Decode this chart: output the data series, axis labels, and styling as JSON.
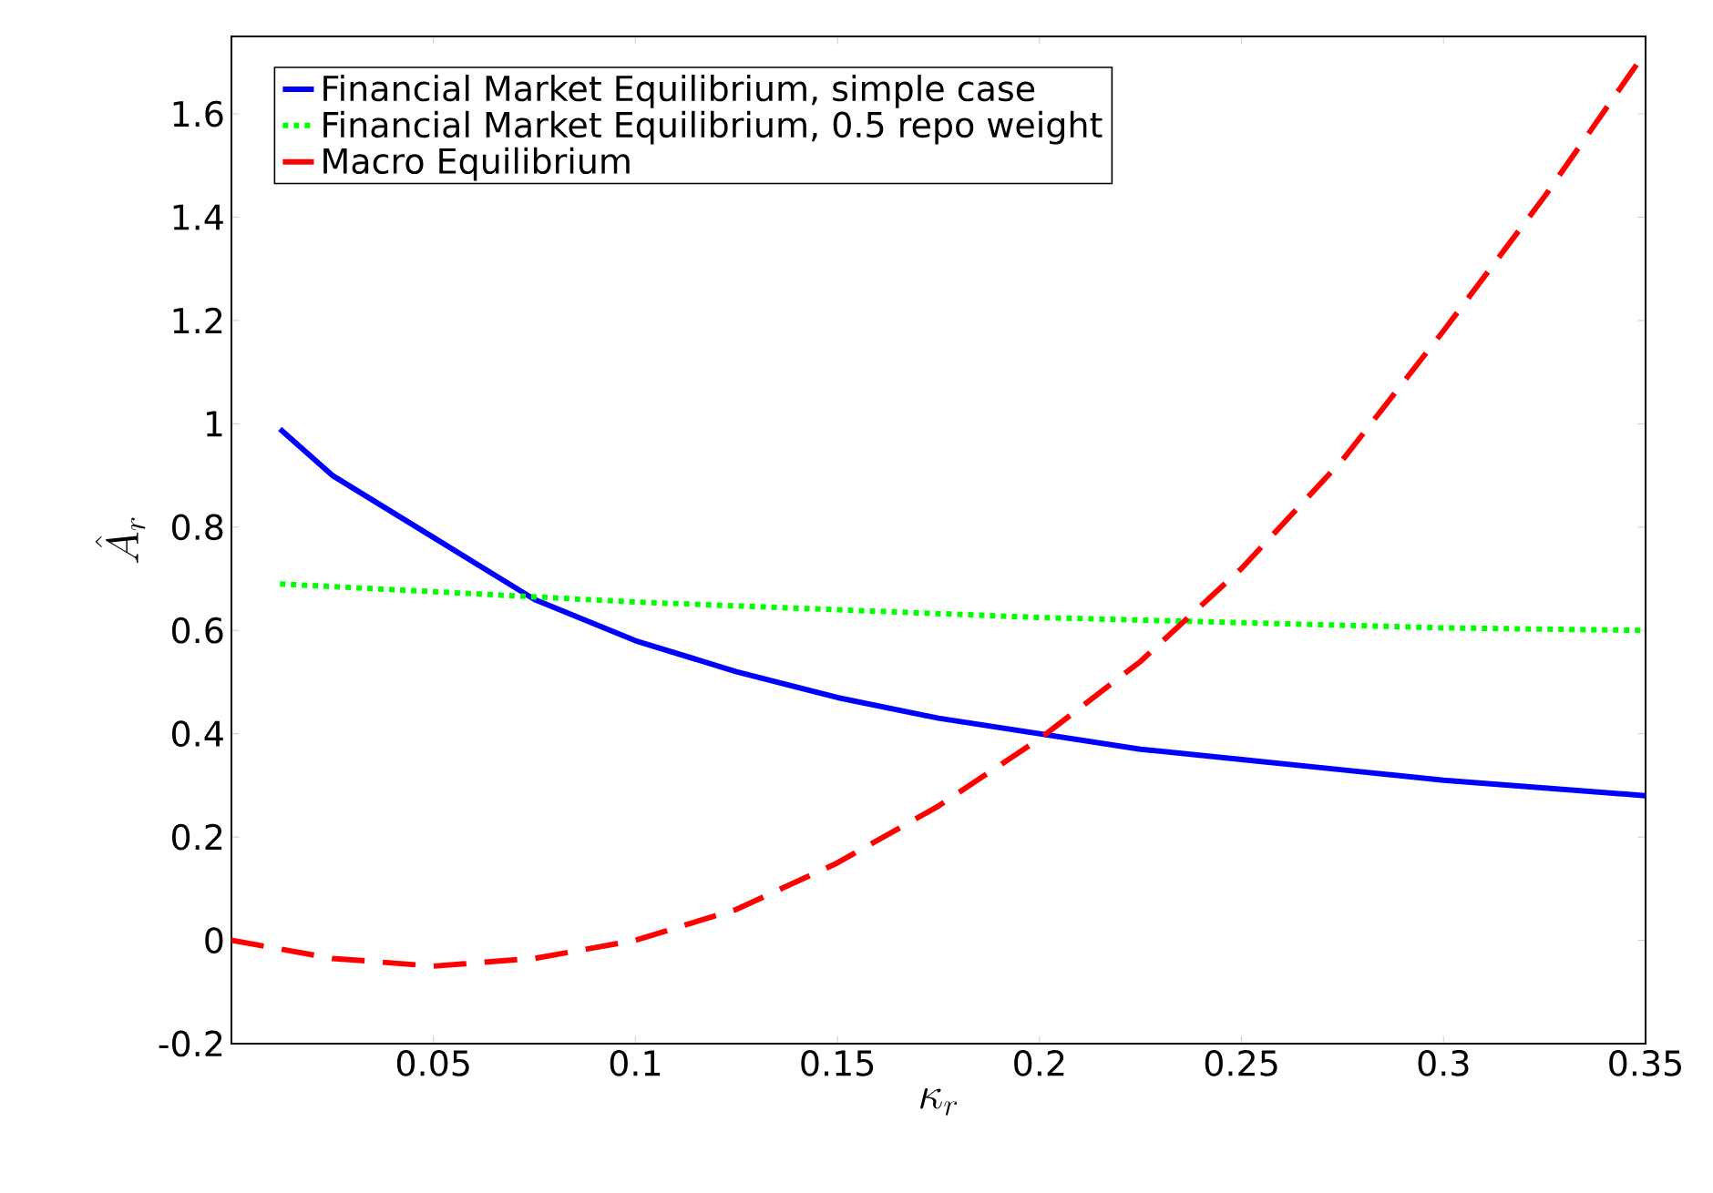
{
  "chart_data": {
    "type": "line",
    "xlabel": "\\kappa_r",
    "ylabel": "\\hat{A}_r",
    "xlim": [
      0,
      0.35
    ],
    "ylim": [
      -0.2,
      1.75
    ],
    "xticks": [
      0.05,
      0.1,
      0.15,
      0.2,
      0.25,
      0.3,
      0.35
    ],
    "yticks": [
      -0.2,
      0,
      0.2,
      0.4,
      0.6,
      0.8,
      1,
      1.2,
      1.4,
      1.6
    ],
    "legend": "top left",
    "grid": false,
    "marker": "none",
    "series": [
      {
        "name": "Financial Market Equilibrium, simple case",
        "color": "#0000ff",
        "line_style": "solid",
        "x": [
          0.012,
          0.025,
          0.05,
          0.075,
          0.1,
          0.125,
          0.15,
          0.175,
          0.2,
          0.225,
          0.25,
          0.275,
          0.3,
          0.325,
          0.35
        ],
        "values": [
          0.99,
          0.9,
          0.78,
          0.66,
          0.58,
          0.52,
          0.47,
          0.43,
          0.4,
          0.37,
          0.35,
          0.33,
          0.31,
          0.295,
          0.28
        ]
      },
      {
        "name": "Financial Market Equilibrium, 0.5 repo weight",
        "color": "#00ff00",
        "line_style": "dotted",
        "x": [
          0.012,
          0.05,
          0.1,
          0.15,
          0.2,
          0.25,
          0.3,
          0.35
        ],
        "values": [
          0.69,
          0.675,
          0.655,
          0.64,
          0.625,
          0.615,
          0.605,
          0.6
        ]
      },
      {
        "name": "Macro Equilibrium",
        "color": "#ff0000",
        "line_style": "dashed",
        "x": [
          0,
          0.025,
          0.05,
          0.075,
          0.1,
          0.125,
          0.15,
          0.175,
          0.2,
          0.225,
          0.25,
          0.275,
          0.3,
          0.325,
          0.35
        ],
        "values": [
          0,
          -0.035,
          -0.05,
          -0.035,
          0,
          0.06,
          0.15,
          0.26,
          0.39,
          0.54,
          0.72,
          0.93,
          1.18,
          1.44,
          1.72
        ]
      }
    ]
  }
}
